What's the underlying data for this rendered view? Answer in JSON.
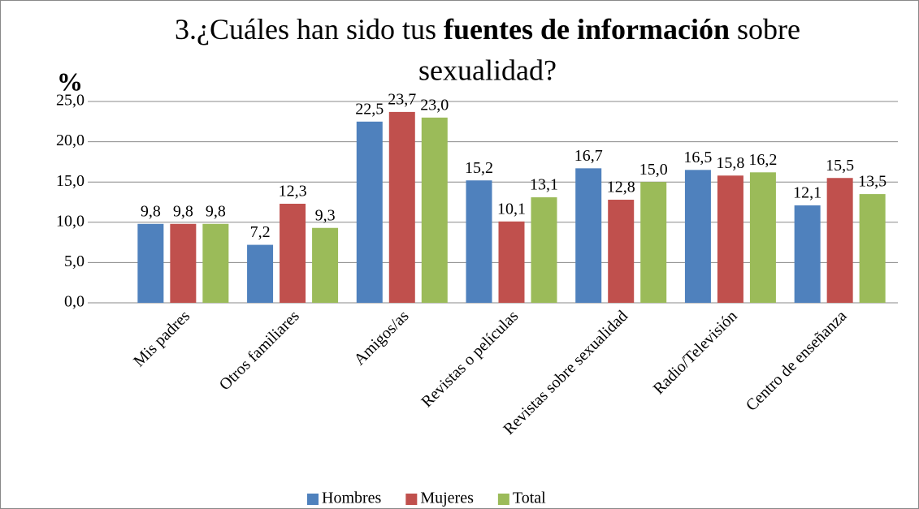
{
  "chart_data": {
    "type": "bar",
    "title": [
      "3.¿Cuáles han sido tus",
      "fuentes de información",
      "sobre",
      "sexualidad?"
    ],
    "y_label": "%",
    "categories": [
      "Mis padres",
      "Otros familiares",
      "Amigos/as",
      "Revistas o películas",
      "Revistas sobre sexualidad",
      "Radio/Televisión",
      "Centro de enseñanza"
    ],
    "series": [
      {
        "name": "Hombres",
        "color": "#4f81bd",
        "values": [
          9.8,
          7.2,
          22.5,
          15.2,
          16.7,
          16.5,
          12.1
        ],
        "value_labels": [
          "9,8",
          "7,2",
          "22,5",
          "15,2",
          "16,7",
          "16,5",
          "12,1"
        ]
      },
      {
        "name": "Mujeres",
        "color": "#c0504d",
        "values": [
          9.8,
          12.3,
          23.7,
          10.1,
          12.8,
          15.8,
          15.5
        ],
        "value_labels": [
          "9,8",
          "12,3",
          "23,7",
          "10,1",
          "12,8",
          "15,8",
          "15,5"
        ]
      },
      {
        "name": "Total",
        "color": "#9bbb59",
        "values": [
          9.8,
          9.3,
          23.0,
          13.1,
          15.0,
          16.2,
          13.5
        ],
        "value_labels": [
          "9,8",
          "9,3",
          "23,0",
          "13,1",
          "15,0",
          "16,2",
          "13,5"
        ]
      }
    ],
    "ylim": [
      0,
      25
    ],
    "yticks": [
      {
        "value": 0,
        "label": "0,0"
      },
      {
        "value": 5,
        "label": "5,0"
      },
      {
        "value": 10,
        "label": "10,0"
      },
      {
        "value": 15,
        "label": "15,0"
      },
      {
        "value": 20,
        "label": "20,0"
      },
      {
        "value": 25,
        "label": "25,0"
      }
    ],
    "grid": true,
    "legend": "bottom"
  }
}
